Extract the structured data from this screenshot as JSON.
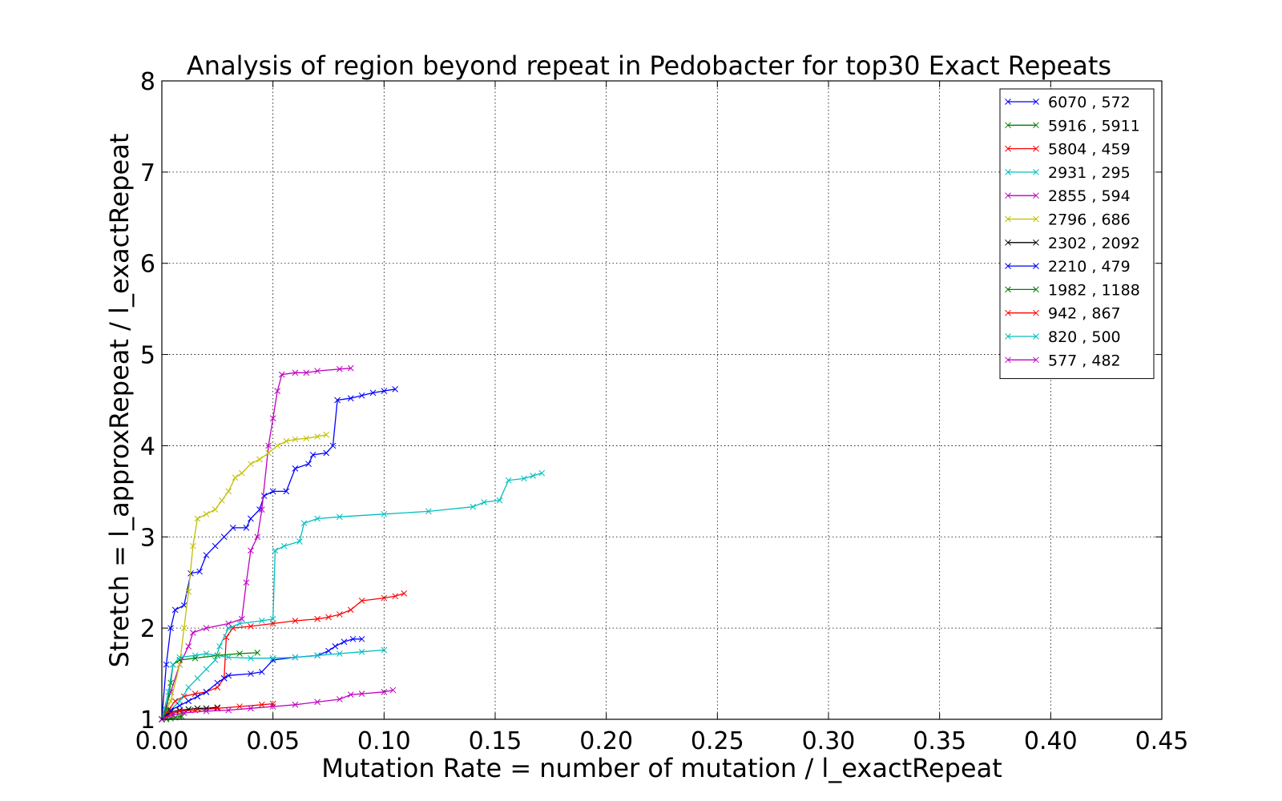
{
  "chart_data": {
    "type": "line",
    "title": "Analysis of region beyond repeat in Pedobacter for top30 Exact Repeats",
    "xlabel": "Mutation Rate = number of mutation / l_exactRepeat",
    "ylabel": "Stretch =  l_approxRepeat / l_exactRepeat",
    "xlim": [
      0.0,
      0.45
    ],
    "ylim": [
      1,
      8
    ],
    "xticks": [
      "0.00",
      "0.05",
      "0.10",
      "0.15",
      "0.20",
      "0.25",
      "0.30",
      "0.35",
      "0.40",
      "0.45"
    ],
    "yticks": [
      "1",
      "2",
      "3",
      "4",
      "5",
      "6",
      "7",
      "8"
    ],
    "grid": true,
    "legend_position": "top-right",
    "marker": "x",
    "series": [
      {
        "name": "6070 , 572",
        "color": "#0000ff",
        "points": [
          [
            0,
            1
          ],
          [
            0.002,
            1.6
          ],
          [
            0.004,
            2.0
          ],
          [
            0.006,
            2.2
          ],
          [
            0.01,
            2.25
          ],
          [
            0.013,
            2.6
          ],
          [
            0.017,
            2.62
          ],
          [
            0.02,
            2.8
          ],
          [
            0.024,
            2.9
          ],
          [
            0.028,
            3.0
          ],
          [
            0.032,
            3.1
          ],
          [
            0.038,
            3.1
          ],
          [
            0.04,
            3.2
          ],
          [
            0.044,
            3.3
          ],
          [
            0.046,
            3.45
          ],
          [
            0.05,
            3.5
          ],
          [
            0.056,
            3.5
          ],
          [
            0.06,
            3.75
          ],
          [
            0.066,
            3.8
          ],
          [
            0.068,
            3.9
          ],
          [
            0.074,
            3.92
          ],
          [
            0.077,
            4.0
          ],
          [
            0.079,
            4.5
          ],
          [
            0.085,
            4.52
          ],
          [
            0.09,
            4.55
          ],
          [
            0.095,
            4.58
          ],
          [
            0.1,
            4.6
          ],
          [
            0.105,
            4.62
          ]
        ]
      },
      {
        "name": "5916 , 5911",
        "color": "#008000",
        "points": [
          [
            0,
            1
          ],
          [
            0.002,
            1.0
          ],
          [
            0.004,
            1.01
          ],
          [
            0.006,
            1.02
          ],
          [
            0.008,
            1.03
          ],
          [
            0.009,
            1.03
          ]
        ]
      },
      {
        "name": "5804 , 459",
        "color": "#ff0000",
        "points": [
          [
            0,
            1
          ],
          [
            0.003,
            1.1
          ],
          [
            0.006,
            1.2
          ],
          [
            0.01,
            1.25
          ],
          [
            0.015,
            1.28
          ],
          [
            0.02,
            1.3
          ],
          [
            0.025,
            1.35
          ],
          [
            0.028,
            1.45
          ],
          [
            0.029,
            1.9
          ],
          [
            0.032,
            2.0
          ],
          [
            0.04,
            2.02
          ],
          [
            0.05,
            2.05
          ],
          [
            0.06,
            2.08
          ],
          [
            0.07,
            2.1
          ],
          [
            0.075,
            2.12
          ],
          [
            0.08,
            2.15
          ],
          [
            0.085,
            2.2
          ],
          [
            0.09,
            2.3
          ],
          [
            0.1,
            2.33
          ],
          [
            0.105,
            2.35
          ],
          [
            0.109,
            2.38
          ]
        ]
      },
      {
        "name": "2931 , 295",
        "color": "#00bfbf",
        "points": [
          [
            0,
            1
          ],
          [
            0.004,
            1.1
          ],
          [
            0.008,
            1.2
          ],
          [
            0.012,
            1.35
          ],
          [
            0.016,
            1.45
          ],
          [
            0.02,
            1.55
          ],
          [
            0.024,
            1.65
          ],
          [
            0.026,
            1.8
          ],
          [
            0.03,
            2.0
          ],
          [
            0.035,
            2.05
          ],
          [
            0.045,
            2.08
          ],
          [
            0.05,
            2.1
          ],
          [
            0.051,
            2.85
          ],
          [
            0.055,
            2.9
          ],
          [
            0.062,
            2.95
          ],
          [
            0.064,
            3.15
          ],
          [
            0.07,
            3.2
          ],
          [
            0.08,
            3.22
          ],
          [
            0.1,
            3.25
          ],
          [
            0.12,
            3.28
          ],
          [
            0.14,
            3.33
          ],
          [
            0.145,
            3.38
          ],
          [
            0.152,
            3.4
          ],
          [
            0.156,
            3.62
          ],
          [
            0.163,
            3.64
          ],
          [
            0.167,
            3.67
          ],
          [
            0.171,
            3.7
          ]
        ]
      },
      {
        "name": "2855 , 594",
        "color": "#bf00bf",
        "points": [
          [
            0,
            1
          ],
          [
            0.004,
            1.3
          ],
          [
            0.008,
            1.6
          ],
          [
            0.012,
            1.8
          ],
          [
            0.014,
            1.95
          ],
          [
            0.02,
            2.0
          ],
          [
            0.03,
            2.05
          ],
          [
            0.036,
            2.1
          ],
          [
            0.038,
            2.5
          ],
          [
            0.04,
            2.85
          ],
          [
            0.043,
            3.0
          ],
          [
            0.045,
            3.3
          ],
          [
            0.048,
            4.0
          ],
          [
            0.05,
            4.3
          ],
          [
            0.052,
            4.6
          ],
          [
            0.054,
            4.78
          ],
          [
            0.06,
            4.8
          ],
          [
            0.065,
            4.8
          ],
          [
            0.07,
            4.82
          ],
          [
            0.08,
            4.84
          ],
          [
            0.085,
            4.85
          ]
        ]
      },
      {
        "name": "2796 , 686",
        "color": "#bfbf00",
        "points": [
          [
            0,
            1
          ],
          [
            0.004,
            1.2
          ],
          [
            0.008,
            1.6
          ],
          [
            0.01,
            2.0
          ],
          [
            0.012,
            2.4
          ],
          [
            0.014,
            2.9
          ],
          [
            0.016,
            3.2
          ],
          [
            0.02,
            3.25
          ],
          [
            0.024,
            3.3
          ],
          [
            0.027,
            3.4
          ],
          [
            0.03,
            3.5
          ],
          [
            0.033,
            3.65
          ],
          [
            0.036,
            3.7
          ],
          [
            0.04,
            3.8
          ],
          [
            0.044,
            3.85
          ],
          [
            0.048,
            3.92
          ],
          [
            0.052,
            4.0
          ],
          [
            0.056,
            4.05
          ],
          [
            0.06,
            4.07
          ],
          [
            0.065,
            4.08
          ],
          [
            0.07,
            4.1
          ],
          [
            0.074,
            4.12
          ]
        ]
      },
      {
        "name": "2302 , 2092",
        "color": "#000000",
        "points": [
          [
            0,
            1
          ],
          [
            0.004,
            1.08
          ],
          [
            0.008,
            1.1
          ],
          [
            0.012,
            1.11
          ],
          [
            0.016,
            1.12
          ],
          [
            0.02,
            1.12
          ],
          [
            0.025,
            1.13
          ]
        ]
      },
      {
        "name": "2210 , 479",
        "color": "#0000ff",
        "points": [
          [
            0,
            1
          ],
          [
            0.004,
            1.1
          ],
          [
            0.008,
            1.15
          ],
          [
            0.012,
            1.2
          ],
          [
            0.016,
            1.25
          ],
          [
            0.02,
            1.3
          ],
          [
            0.025,
            1.4
          ],
          [
            0.028,
            1.45
          ],
          [
            0.03,
            1.48
          ],
          [
            0.04,
            1.5
          ],
          [
            0.045,
            1.52
          ],
          [
            0.05,
            1.65
          ],
          [
            0.06,
            1.68
          ],
          [
            0.07,
            1.7
          ],
          [
            0.075,
            1.75
          ],
          [
            0.078,
            1.8
          ],
          [
            0.082,
            1.85
          ],
          [
            0.086,
            1.88
          ],
          [
            0.09,
            1.88
          ]
        ]
      },
      {
        "name": "1982 , 1188",
        "color": "#008000",
        "points": [
          [
            0,
            1
          ],
          [
            0.002,
            1.1
          ],
          [
            0.004,
            1.4
          ],
          [
            0.005,
            1.6
          ],
          [
            0.008,
            1.65
          ],
          [
            0.015,
            1.67
          ],
          [
            0.025,
            1.7
          ],
          [
            0.035,
            1.72
          ],
          [
            0.043,
            1.73
          ]
        ]
      },
      {
        "name": "942 , 867",
        "color": "#ff0000",
        "points": [
          [
            0,
            1
          ],
          [
            0.004,
            1.06
          ],
          [
            0.008,
            1.09
          ],
          [
            0.015,
            1.1
          ],
          [
            0.025,
            1.12
          ],
          [
            0.035,
            1.14
          ],
          [
            0.045,
            1.16
          ],
          [
            0.05,
            1.17
          ]
        ]
      },
      {
        "name": "820 , 500",
        "color": "#00bfbf",
        "points": [
          [
            0,
            1
          ],
          [
            0.003,
            1.3
          ],
          [
            0.005,
            1.6
          ],
          [
            0.008,
            1.68
          ],
          [
            0.015,
            1.7
          ],
          [
            0.02,
            1.72
          ],
          [
            0.03,
            1.68
          ],
          [
            0.04,
            1.67
          ],
          [
            0.05,
            1.67
          ],
          [
            0.06,
            1.68
          ],
          [
            0.07,
            1.7
          ],
          [
            0.08,
            1.72
          ],
          [
            0.09,
            1.74
          ],
          [
            0.1,
            1.76
          ]
        ]
      },
      {
        "name": "577 , 482",
        "color": "#bf00bf",
        "points": [
          [
            0,
            1
          ],
          [
            0.005,
            1.05
          ],
          [
            0.01,
            1.07
          ],
          [
            0.02,
            1.09
          ],
          [
            0.03,
            1.1
          ],
          [
            0.04,
            1.12
          ],
          [
            0.05,
            1.14
          ],
          [
            0.06,
            1.16
          ],
          [
            0.07,
            1.19
          ],
          [
            0.08,
            1.22
          ],
          [
            0.085,
            1.27
          ],
          [
            0.09,
            1.28
          ],
          [
            0.1,
            1.3
          ],
          [
            0.104,
            1.32
          ]
        ]
      }
    ]
  }
}
